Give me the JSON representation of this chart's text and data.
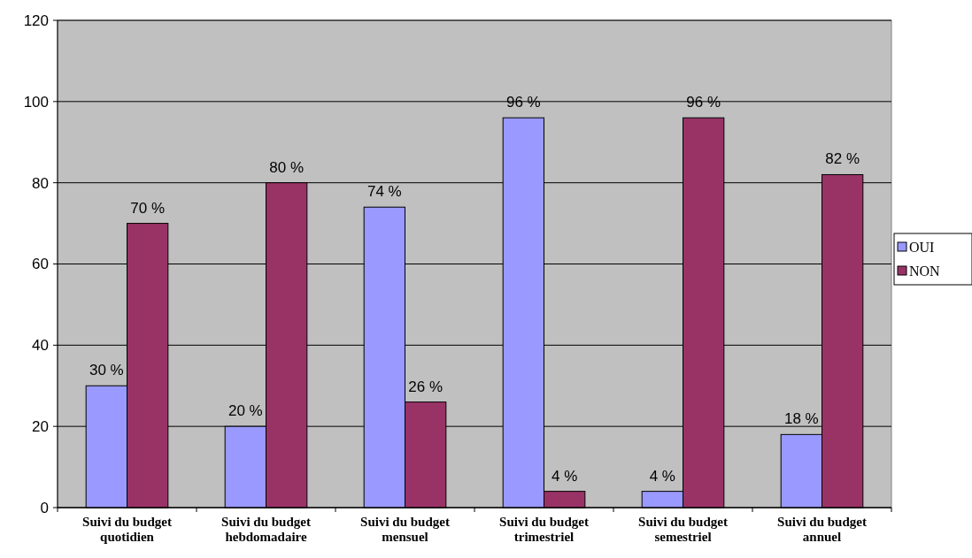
{
  "chart_data": {
    "type": "bar",
    "categories": [
      "Suivi du budget quotidien",
      "Suivi du budget hebdomadaire",
      "Suivi du budget mensuel",
      "Suivi du budget trimestriel",
      "Suivi du budget semestriel",
      "Suivi du budget annuel"
    ],
    "series": [
      {
        "name": "OUI",
        "color": "#9999ff",
        "values": [
          30,
          20,
          74,
          96,
          4,
          18
        ],
        "value_labels": [
          "30 %",
          "20 %",
          "74 %",
          "96 %",
          "4 %",
          "18 %"
        ]
      },
      {
        "name": "NON",
        "color": "#993366",
        "values": [
          70,
          80,
          26,
          4,
          96,
          82
        ],
        "value_labels": [
          "70 %",
          "80 %",
          "26 %",
          "4 %",
          "96 %",
          "82 %"
        ]
      }
    ],
    "ylim": [
      0,
      120
    ],
    "yticks": [
      0,
      20,
      40,
      60,
      80,
      100,
      120
    ],
    "grid": "y",
    "legend": "right"
  }
}
